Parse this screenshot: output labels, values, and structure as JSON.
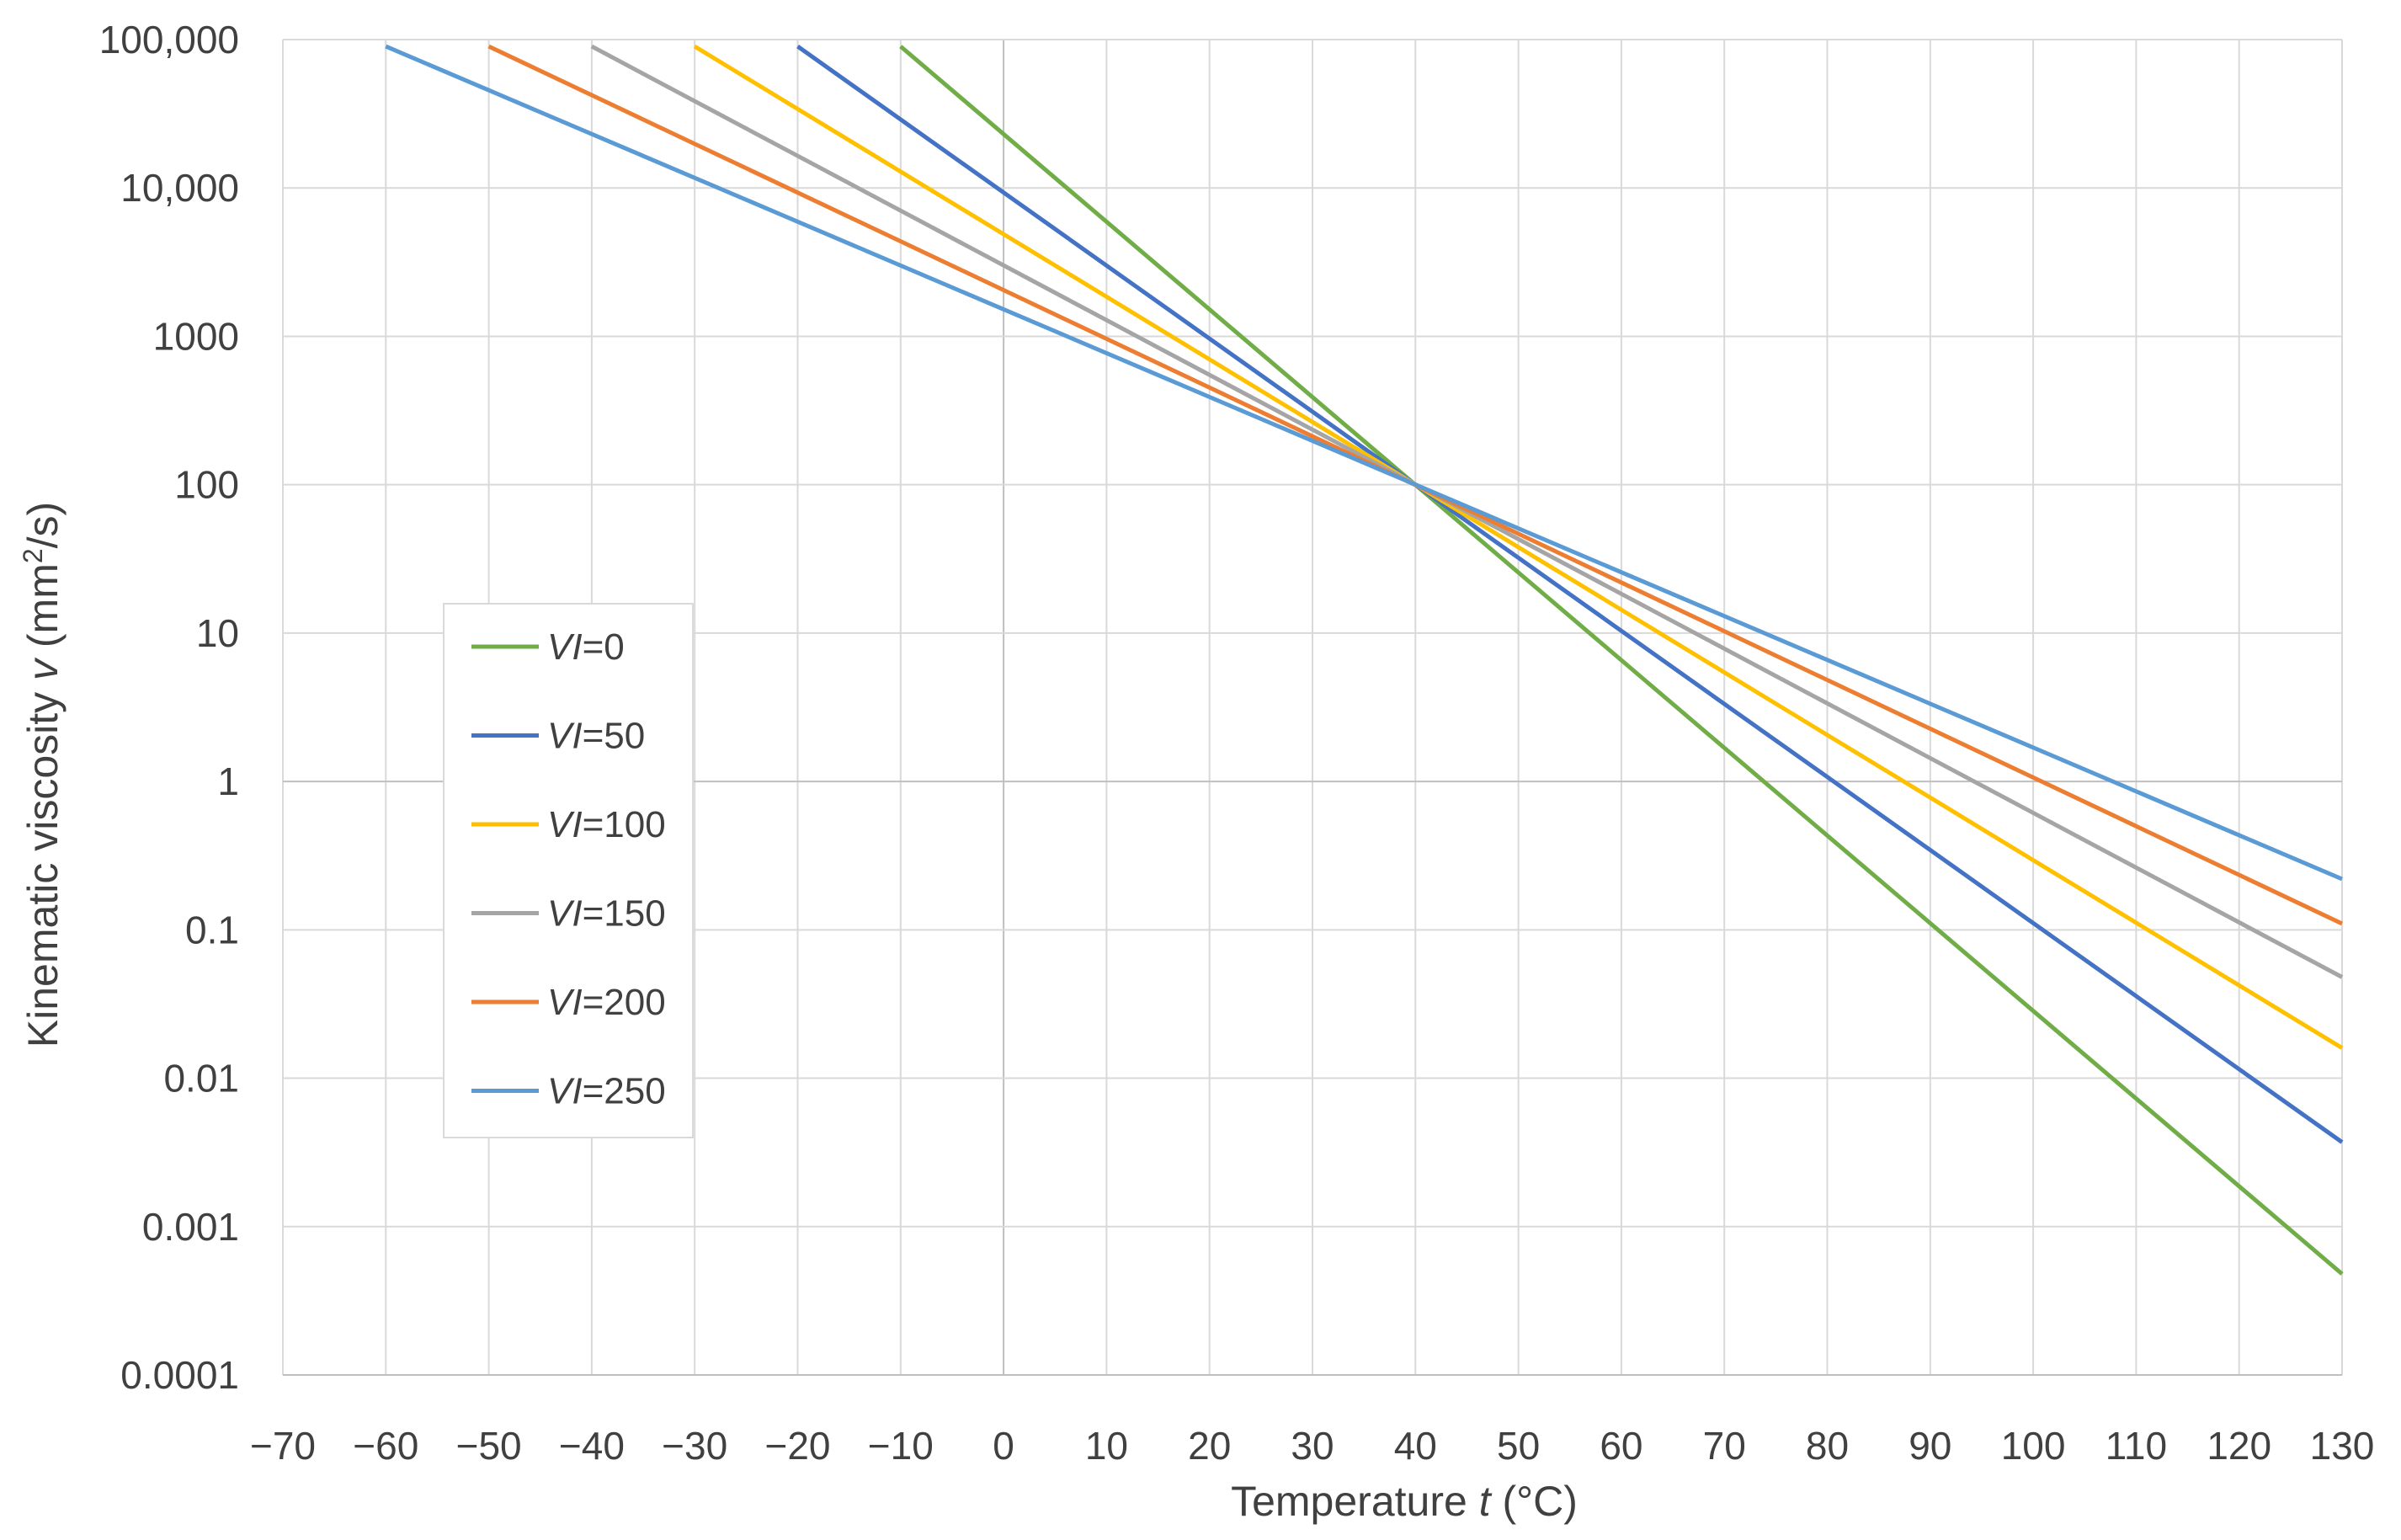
{
  "chart_data": {
    "type": "line",
    "title": "",
    "xlabel_prefix": "Temperature ",
    "xlabel_var": "t",
    "xlabel_suffix": " (°C)",
    "ylabel_prefix": "Kinematic viscosity ",
    "ylabel_var": "v",
    "ylabel_units_start": " (mm",
    "ylabel_units_sup": "2",
    "ylabel_units_end": "/s)",
    "y_scale": "log",
    "xlim": [
      -70,
      130
    ],
    "ylim": [
      0.0001,
      100000
    ],
    "x_ticks": [
      -70,
      -60,
      -50,
      -40,
      -30,
      -20,
      -10,
      0,
      10,
      20,
      30,
      40,
      50,
      60,
      70,
      80,
      90,
      100,
      110,
      120,
      130
    ],
    "x_tick_labels": [
      "−70",
      "−60",
      "−50",
      "−40",
      "−30",
      "−20",
      "−10",
      "0",
      "10",
      "20",
      "30",
      "40",
      "50",
      "60",
      "70",
      "80",
      "90",
      "100",
      "110",
      "120",
      "130"
    ],
    "y_ticks": [
      0.0001,
      0.001,
      0.01,
      0.1,
      1,
      10,
      100,
      1000,
      10000,
      100000
    ],
    "y_tick_labels": [
      "0.0001",
      "0.001",
      "0.01",
      "0.1",
      "1",
      "10",
      "100",
      "1000",
      "10,000",
      "100,000"
    ],
    "grid": true,
    "legend_position": "center-left",
    "series": [
      {
        "name_var": "VI",
        "name_rest": "=0",
        "color": "#70ad47",
        "x": [
          -10,
          130
        ],
        "y": [
          90000,
          0.00048
        ]
      },
      {
        "name_var": "VI",
        "name_rest": "=50",
        "color": "#4472c4",
        "x": [
          -20,
          130
        ],
        "y": [
          90000,
          0.0037
        ]
      },
      {
        "name_var": "VI",
        "name_rest": "=100",
        "color": "#ffc000",
        "x": [
          -30,
          130
        ],
        "y": [
          90000,
          0.016
        ]
      },
      {
        "name_var": "VI",
        "name_rest": "=150",
        "color": "#a5a5a5",
        "x": [
          -40,
          130
        ],
        "y": [
          90000,
          0.048
        ]
      },
      {
        "name_var": "VI",
        "name_rest": "=200",
        "color": "#ed7d31",
        "x": [
          -50,
          130
        ],
        "y": [
          90000,
          0.11
        ]
      },
      {
        "name_var": "VI",
        "name_rest": "=250",
        "color": "#5b9bd5",
        "x": [
          -60,
          130
        ],
        "y": [
          90000,
          0.22
        ]
      }
    ]
  }
}
